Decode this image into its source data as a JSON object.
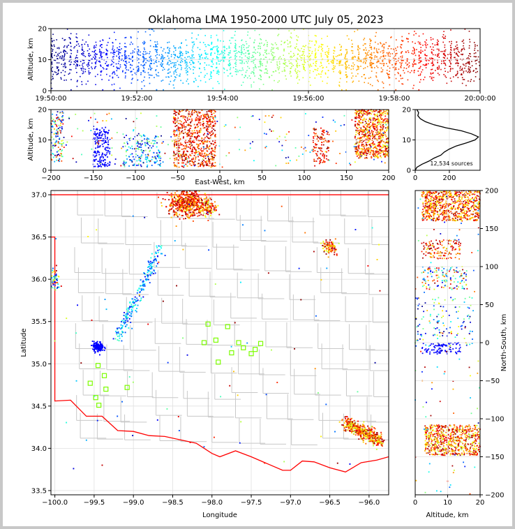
{
  "title": "Oklahoma LMA 1950-2000 UTC July 05, 2023",
  "colors": {
    "county": "#c8c8c8",
    "state": "#ff0000",
    "station": "#7cfc00",
    "frame_bg": "#c8c8c8"
  },
  "chart_data": [
    {
      "id": "time_height",
      "type": "scatter",
      "ylabel": "Altitude, km",
      "ylim": [
        0,
        20
      ],
      "y_ticks": [
        "0",
        "10",
        "20"
      ],
      "xlim": [
        "19:50:00",
        "20:00:00"
      ],
      "x_ticks": [
        "19:50:00",
        "19:52:00",
        "19:54:00",
        "19:56:00",
        "19:58:00",
        "20:00:00"
      ],
      "colormap": "jet (time)",
      "grid": true
    },
    {
      "id": "ew_height",
      "type": "scatter",
      "xlabel": "East-West, km",
      "ylabel": "Altitude, km",
      "xlim": [
        -200,
        200
      ],
      "ylim": [
        0,
        20
      ],
      "x_ticks": [
        "−200",
        "−150",
        "−100",
        "−50",
        "0",
        "50",
        "100",
        "150",
        "200"
      ],
      "y_ticks": [
        "0",
        "10",
        "20"
      ],
      "clusters": [
        {
          "x_range": [
            -200,
            -185
          ],
          "z_range": [
            3,
            20
          ],
          "color": "mixed"
        },
        {
          "x_range": [
            -150,
            -130
          ],
          "z_range": [
            1,
            14
          ],
          "color": "#0000ff"
        },
        {
          "x_range": [
            -115,
            -70
          ],
          "z_range": [
            1,
            12
          ],
          "color": "mixed-blue-cyan"
        },
        {
          "x_range": [
            -55,
            -5
          ],
          "z_range": [
            1,
            20
          ],
          "color": "red/orange"
        },
        {
          "x_range": [
            110,
            130
          ],
          "z_range": [
            2,
            14
          ],
          "color": "dark red/orange"
        },
        {
          "x_range": [
            160,
            200
          ],
          "z_range": [
            4,
            20
          ],
          "color": "dark red/yellow"
        }
      ]
    },
    {
      "id": "height_histogram",
      "type": "line",
      "xlim": [
        0,
        380
      ],
      "ylim": [
        0,
        20
      ],
      "x_ticks": [
        "0",
        "200"
      ],
      "y_ticks": [
        "0",
        "10",
        "20"
      ],
      "annotation": "12,534 sources",
      "points": [
        [
          0,
          0
        ],
        [
          10,
          1
        ],
        [
          40,
          2
        ],
        [
          80,
          3
        ],
        [
          110,
          4
        ],
        [
          150,
          5
        ],
        [
          170,
          6
        ],
        [
          200,
          7
        ],
        [
          240,
          8
        ],
        [
          300,
          9
        ],
        [
          350,
          10
        ],
        [
          370,
          11
        ],
        [
          330,
          12
        ],
        [
          270,
          13
        ],
        [
          180,
          14
        ],
        [
          110,
          15
        ],
        [
          60,
          16
        ],
        [
          30,
          17
        ],
        [
          15,
          18
        ],
        [
          20,
          19
        ],
        [
          10,
          20
        ]
      ]
    },
    {
      "id": "plan_view",
      "type": "scatter",
      "xlabel": "Longitude",
      "ylabel": "Latitude",
      "xlim": [
        -100.05,
        -95.75
      ],
      "ylim": [
        33.45,
        37.05
      ],
      "x_ticks": [
        "−100.0",
        "−99.5",
        "−99.0",
        "−98.5",
        "−98.0",
        "−97.5",
        "−97.0",
        "−96.5",
        "−96.0"
      ],
      "y_ticks": [
        "33.5",
        "34.0",
        "34.5",
        "35.0",
        "35.5",
        "36.0",
        "36.5",
        "37.0"
      ],
      "stations": [
        [
          -99.45,
          34.98
        ],
        [
          -99.37,
          34.86
        ],
        [
          -99.55,
          34.77
        ],
        [
          -99.35,
          34.7
        ],
        [
          -99.48,
          34.6
        ],
        [
          -99.44,
          34.51
        ],
        [
          -99.08,
          34.72
        ],
        [
          -98.05,
          35.47
        ],
        [
          -98.1,
          35.25
        ],
        [
          -97.95,
          35.28
        ],
        [
          -97.92,
          35.02
        ],
        [
          -97.8,
          35.44
        ],
        [
          -97.75,
          35.13
        ],
        [
          -97.66,
          35.25
        ],
        [
          -97.6,
          35.19
        ],
        [
          -97.5,
          35.12
        ],
        [
          -97.45,
          35.17
        ],
        [
          -97.38,
          35.24
        ]
      ]
    },
    {
      "id": "ns_height",
      "type": "scatter",
      "xlabel": "Altitude, km",
      "ylabel": "North-South, km",
      "xlim": [
        0,
        20
      ],
      "ylim": [
        -200,
        200
      ],
      "x_ticks": [
        "0",
        "10",
        "20"
      ],
      "y_ticks": [
        "−200",
        "−150",
        "−100",
        "−50",
        "0",
        "50",
        "100",
        "150",
        "200"
      ]
    }
  ]
}
